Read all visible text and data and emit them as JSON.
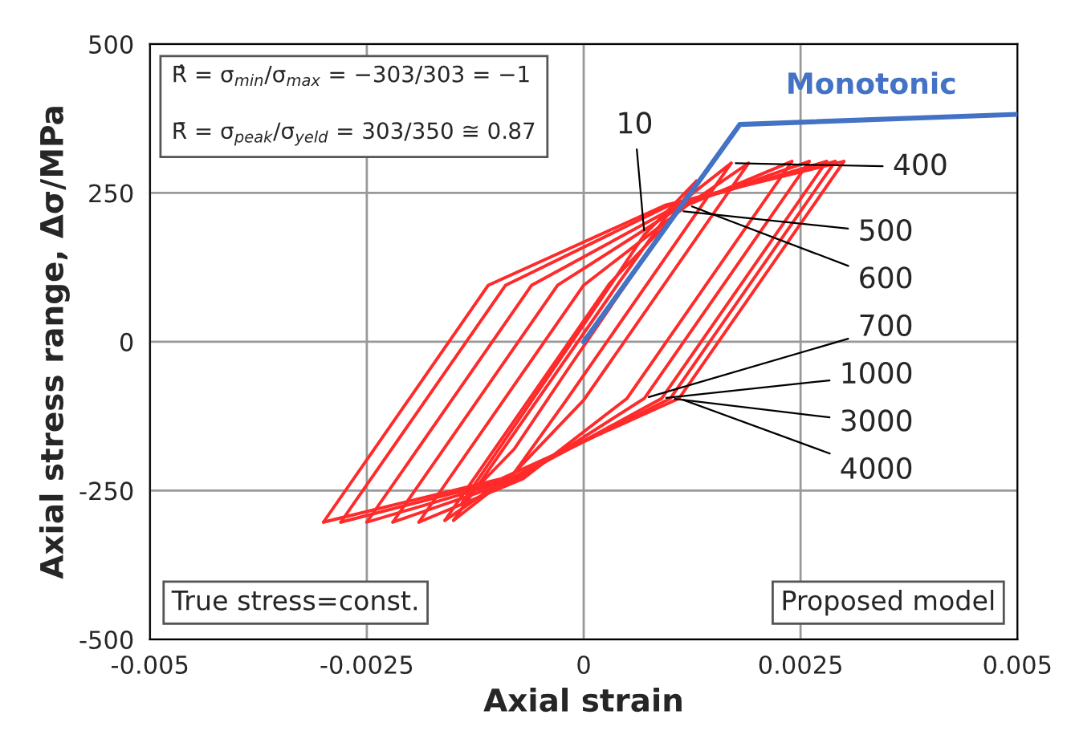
{
  "chart_data": {
    "type": "line",
    "xlabel": "Axial strain",
    "ylabel": "Axial stress range, Δσ/MPa",
    "xlim": [
      -0.005,
      0.005
    ],
    "ylim": [
      -500,
      500
    ],
    "xticks": [
      -0.005,
      -0.0025,
      0,
      0.0025,
      0.005
    ],
    "yticks": [
      -500,
      -250,
      0,
      250,
      500
    ],
    "grid": true,
    "legend": false,
    "line_style": "solid",
    "marker": "none",
    "series": [
      {
        "color": "#ff2a2a",
        "x": [
          -0.0014,
          0.0001,
          0.0007,
          0.0013
        ],
        "values": [
          -270,
          50,
          180,
          270
        ]
      },
      {
        "color": "#ff2a2a",
        "x": [
          -0.0014,
          -0.0008,
          -0.0002,
          0.0013
        ],
        "values": [
          -270,
          -180,
          -50,
          270
        ]
      },
      {
        "color": "#ff2a2a",
        "x": [
          -0.0015,
          0.0004,
          0.001,
          0.0017
        ],
        "values": [
          -300,
          98,
          220,
          300
        ]
      },
      {
        "color": "#ff2a2a",
        "x": [
          -0.0015,
          -0.0008,
          -0.0002,
          0.0017
        ],
        "values": [
          -300,
          -220,
          -98,
          300
        ]
      },
      {
        "color": "#ff2a2a",
        "x": [
          -0.0016,
          0.0003,
          0.0011,
          0.0019
        ],
        "values": [
          -300,
          98,
          220,
          300
        ]
      },
      {
        "color": "#ff2a2a",
        "x": [
          -0.0016,
          -0.0008,
          0,
          0.0019
        ],
        "values": [
          -300,
          -220,
          -98,
          300
        ]
      },
      {
        "color": "#ff2a2a",
        "x": [
          -0.0019,
          0,
          0.0012,
          0.0024
        ],
        "values": [
          -303,
          95,
          230,
          303
        ]
      },
      {
        "color": "#ff2a2a",
        "x": [
          -0.0019,
          -0.0007,
          0.0005,
          0.0024
        ],
        "values": [
          -303,
          -230,
          -95,
          303
        ]
      },
      {
        "color": "#ff2a2a",
        "x": [
          -0.0022,
          -0.0003,
          0.00115,
          0.0026
        ],
        "values": [
          -303,
          95,
          230,
          303
        ]
      },
      {
        "color": "#ff2a2a",
        "x": [
          -0.0022,
          -0.00075,
          0.0007,
          0.0026
        ],
        "values": [
          -303,
          -230,
          -95,
          303
        ]
      },
      {
        "color": "#ff2a2a",
        "x": [
          -0.0025,
          -0.0006,
          0.0011,
          0.0028
        ],
        "values": [
          -303,
          95,
          230,
          303
        ]
      },
      {
        "color": "#ff2a2a",
        "x": [
          -0.0025,
          -0.0008,
          0.0009,
          0.0028
        ],
        "values": [
          -303,
          -230,
          -95,
          303
        ]
      },
      {
        "color": "#ff2a2a",
        "x": [
          -0.0028,
          -0.0009,
          0.001,
          0.0029
        ],
        "values": [
          -303,
          95,
          230,
          303
        ]
      },
      {
        "color": "#ff2a2a",
        "x": [
          -0.0028,
          -0.00085,
          0.001,
          0.0029
        ],
        "values": [
          -303,
          -230,
          -95,
          303
        ]
      },
      {
        "color": "#ff2a2a",
        "x": [
          -0.003,
          -0.0011,
          0.00095,
          0.003
        ],
        "values": [
          -303,
          95,
          230,
          303
        ]
      },
      {
        "color": "#ff2a2a",
        "x": [
          -0.003,
          -0.00095,
          0.0011,
          0.003
        ],
        "values": [
          -303,
          -230,
          -95,
          303
        ]
      },
      {
        "name": "Monotonic",
        "color": "#4472c4",
        "x": [
          0,
          0.0018,
          0.005
        ],
        "values": [
          0,
          365,
          382
        ]
      }
    ],
    "annotations": [
      "R̂ = σ$_{min}$/σ$_{max}$ = −303/303 = −1",
      "R̄ = σ$_{peak}$/σ$_{yeld}$ = 303/350 ≅ 0.87",
      "True stress=const.",
      "Proposed model",
      {
        "text": "10",
        "x": 0.0007,
        "y": 180
      },
      {
        "text": "400",
        "x": 0.0017,
        "y": 300
      },
      {
        "text": "500",
        "x": 0.0011,
        "y": 220
      },
      {
        "text": "600",
        "x": 0.0012,
        "y": 230
      },
      {
        "text": "700",
        "x": 0.0007,
        "y": -95
      },
      {
        "text": "1000",
        "x": 0.0009,
        "y": -95
      },
      {
        "text": "3000",
        "x": 0.001,
        "y": -95
      },
      {
        "text": "4000",
        "x": 0.0011,
        "y": -95
      }
    ]
  }
}
